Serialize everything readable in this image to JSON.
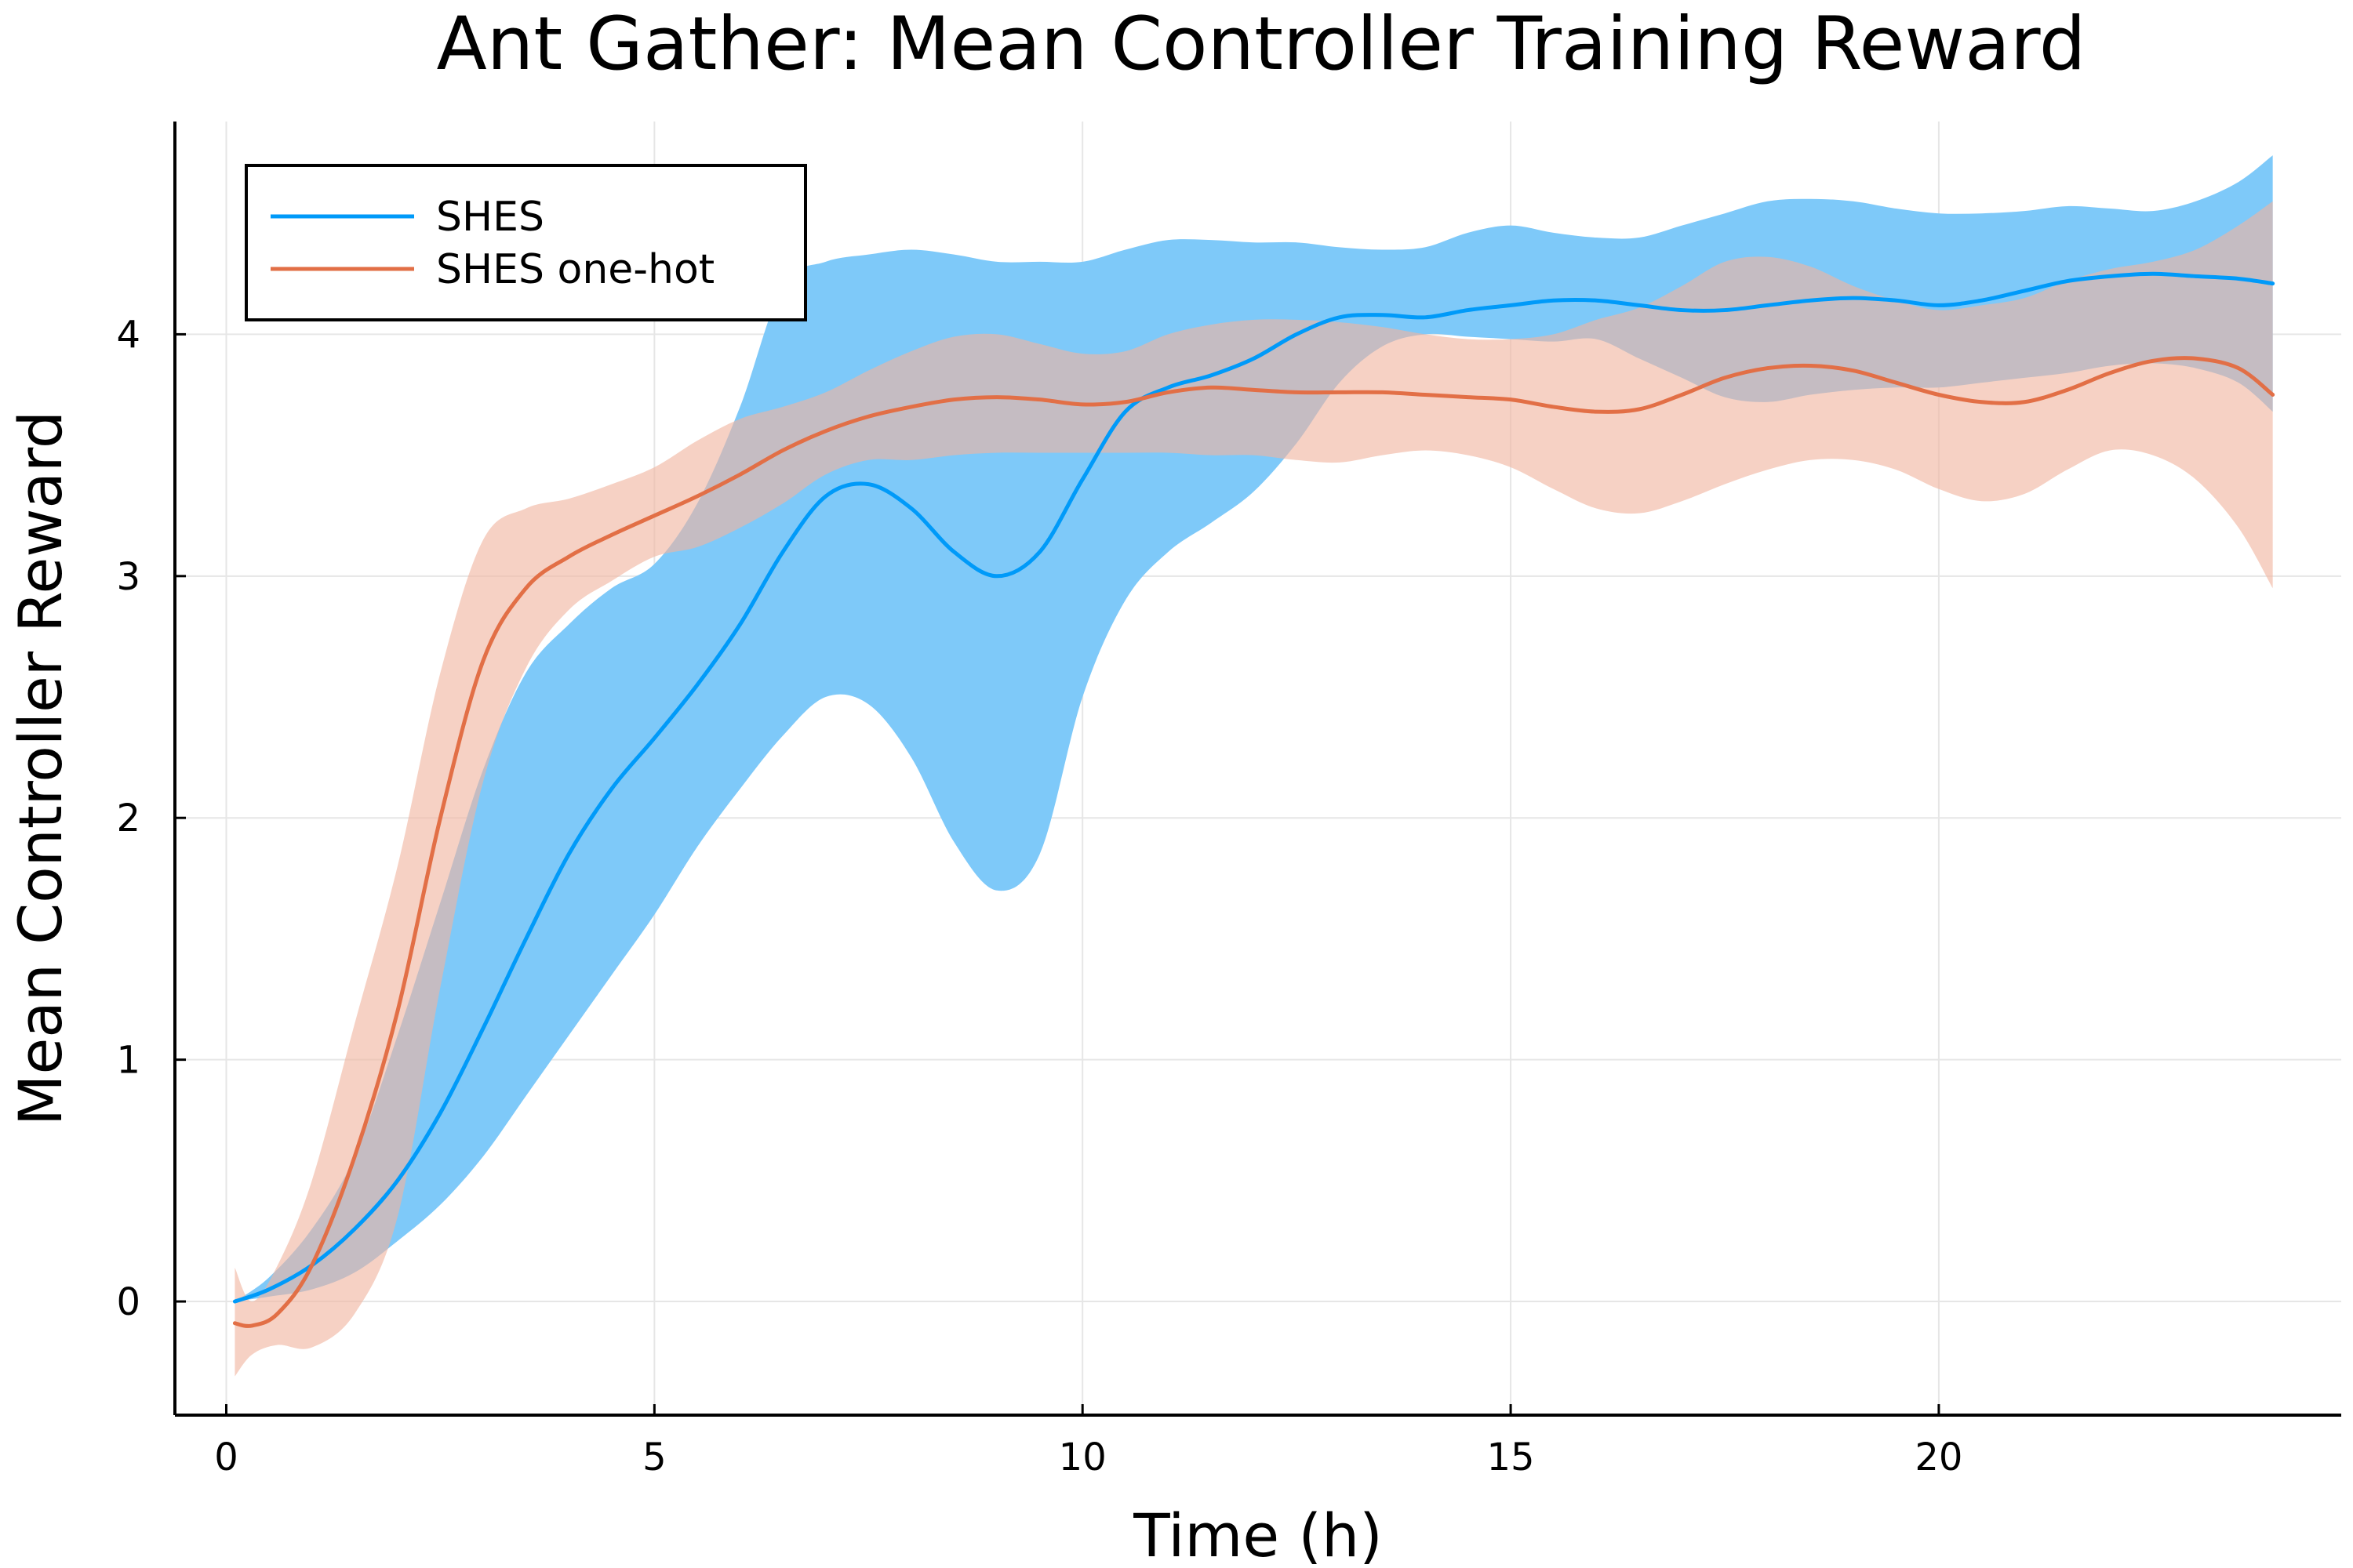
{
  "chart_data": {
    "type": "line",
    "title": "Ant Gather: Mean Controller Training Reward",
    "xlabel": "Time (h)",
    "ylabel": "Mean Controller Reward",
    "xlim": [
      -0.6,
      24.7
    ],
    "ylim": [
      -0.47,
      4.88
    ],
    "xticks": [
      0,
      5,
      10,
      15,
      20
    ],
    "yticks": [
      0,
      1,
      2,
      3,
      4
    ],
    "xtick_labels": [
      "0",
      "5",
      "10",
      "15",
      "20"
    ],
    "ytick_labels": [
      "0",
      "1",
      "2",
      "3",
      "4"
    ],
    "grid": true,
    "legend_position": "top-left",
    "series": [
      {
        "name": "SHES",
        "color": "#009af9",
        "band_color": "#7ec9f9",
        "x": [
          0.1,
          0.5,
          1.0,
          1.5,
          2.0,
          2.5,
          3.0,
          3.5,
          4.0,
          4.5,
          5.0,
          5.5,
          6.0,
          6.5,
          7.0,
          7.5,
          8.0,
          8.5,
          9.0,
          9.5,
          10.0,
          10.5,
          11.0,
          11.5,
          12.0,
          12.5,
          13.0,
          13.5,
          14.0,
          14.5,
          15.0,
          15.5,
          16.0,
          16.5,
          17.0,
          17.5,
          18.0,
          18.5,
          19.0,
          19.5,
          20.0,
          20.5,
          21.0,
          21.5,
          22.0,
          22.5,
          23.0,
          23.5,
          23.9
        ],
        "mean": [
          0.0,
          0.05,
          0.15,
          0.3,
          0.5,
          0.78,
          1.13,
          1.5,
          1.85,
          2.12,
          2.33,
          2.55,
          2.8,
          3.1,
          3.33,
          3.38,
          3.28,
          3.1,
          3.0,
          3.1,
          3.4,
          3.68,
          3.78,
          3.83,
          3.9,
          4.0,
          4.07,
          4.08,
          4.07,
          4.1,
          4.12,
          4.14,
          4.14,
          4.12,
          4.1,
          4.1,
          4.12,
          4.14,
          4.15,
          4.14,
          4.12,
          4.14,
          4.18,
          4.22,
          4.24,
          4.25,
          4.24,
          4.23,
          4.21
        ],
        "upper": [
          0.0,
          0.1,
          0.3,
          0.6,
          1.1,
          1.65,
          2.2,
          2.6,
          2.8,
          2.95,
          3.05,
          3.3,
          3.7,
          4.2,
          4.3,
          4.33,
          4.35,
          4.33,
          4.3,
          4.3,
          4.3,
          4.35,
          4.39,
          4.39,
          4.38,
          4.38,
          4.36,
          4.35,
          4.36,
          4.42,
          4.45,
          4.42,
          4.4,
          4.4,
          4.45,
          4.5,
          4.55,
          4.56,
          4.55,
          4.52,
          4.5,
          4.5,
          4.51,
          4.53,
          4.52,
          4.51,
          4.55,
          4.63,
          4.74
        ],
        "lower": [
          0.0,
          0.02,
          0.05,
          0.12,
          0.25,
          0.4,
          0.6,
          0.85,
          1.1,
          1.35,
          1.6,
          1.88,
          2.12,
          2.34,
          2.5,
          2.47,
          2.25,
          1.9,
          1.7,
          1.85,
          2.5,
          2.9,
          3.1,
          3.22,
          3.35,
          3.55,
          3.8,
          3.95,
          4.0,
          3.99,
          3.98,
          3.97,
          3.98,
          3.9,
          3.82,
          3.74,
          3.72,
          3.75,
          3.77,
          3.78,
          3.78,
          3.8,
          3.82,
          3.84,
          3.87,
          3.88,
          3.86,
          3.8,
          3.68
        ]
      },
      {
        "name": "SHES one-hot",
        "color": "#e26f46",
        "band_color": "#f0b4a0",
        "x": [
          0.1,
          0.3,
          0.6,
          1.0,
          1.5,
          2.0,
          2.5,
          3.0,
          3.5,
          4.0,
          4.5,
          5.0,
          5.5,
          6.0,
          6.5,
          7.0,
          7.5,
          8.0,
          8.5,
          9.0,
          9.5,
          10.0,
          10.5,
          11.0,
          11.5,
          12.0,
          12.5,
          13.0,
          13.5,
          14.0,
          14.5,
          15.0,
          15.5,
          16.0,
          16.5,
          17.0,
          17.5,
          18.0,
          18.5,
          19.0,
          19.5,
          20.0,
          20.5,
          21.0,
          21.5,
          22.0,
          22.5,
          23.0,
          23.5,
          23.9
        ],
        "mean": [
          -0.09,
          -0.1,
          -0.05,
          0.15,
          0.6,
          1.2,
          2.0,
          2.65,
          2.95,
          3.08,
          3.17,
          3.25,
          3.33,
          3.42,
          3.52,
          3.6,
          3.66,
          3.7,
          3.73,
          3.74,
          3.73,
          3.71,
          3.72,
          3.76,
          3.78,
          3.77,
          3.76,
          3.76,
          3.76,
          3.75,
          3.74,
          3.73,
          3.7,
          3.68,
          3.69,
          3.75,
          3.82,
          3.86,
          3.87,
          3.85,
          3.8,
          3.75,
          3.72,
          3.72,
          3.77,
          3.84,
          3.89,
          3.9,
          3.86,
          3.75
        ],
        "upper": [
          0.14,
          0.0,
          0.15,
          0.5,
          1.15,
          1.8,
          2.6,
          3.15,
          3.28,
          3.32,
          3.38,
          3.45,
          3.56,
          3.65,
          3.7,
          3.76,
          3.85,
          3.93,
          3.99,
          4.0,
          3.96,
          3.92,
          3.93,
          4.0,
          4.04,
          4.06,
          4.06,
          4.05,
          4.03,
          4.0,
          3.98,
          3.98,
          4.0,
          4.06,
          4.11,
          4.2,
          4.3,
          4.32,
          4.28,
          4.2,
          4.14,
          4.1,
          4.12,
          4.15,
          4.22,
          4.27,
          4.3,
          4.35,
          4.45,
          4.55
        ],
        "lower": [
          -0.31,
          -0.22,
          -0.18,
          -0.19,
          -0.05,
          0.35,
          1.3,
          2.15,
          2.62,
          2.86,
          2.98,
          3.08,
          3.12,
          3.2,
          3.3,
          3.42,
          3.48,
          3.48,
          3.5,
          3.51,
          3.51,
          3.51,
          3.51,
          3.51,
          3.5,
          3.5,
          3.48,
          3.47,
          3.5,
          3.52,
          3.5,
          3.45,
          3.36,
          3.28,
          3.26,
          3.31,
          3.38,
          3.44,
          3.48,
          3.48,
          3.44,
          3.36,
          3.31,
          3.34,
          3.44,
          3.52,
          3.5,
          3.4,
          3.2,
          2.95
        ]
      }
    ]
  }
}
